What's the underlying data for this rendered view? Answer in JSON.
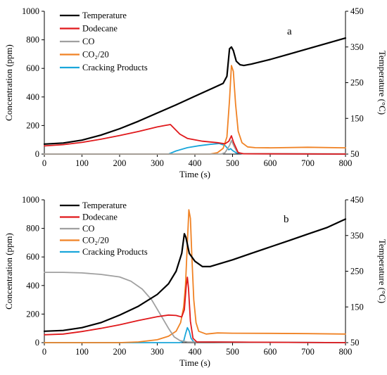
{
  "chart_data": [
    {
      "type": "line",
      "panel_label": "a",
      "xlabel": "Time (s)",
      "ylabel": "Concentration (ppm)",
      "y2label": "Temperature (°C)",
      "xlim": [
        0,
        800
      ],
      "ylim": [
        0,
        1000
      ],
      "y2lim": [
        50,
        450
      ],
      "xticks": [
        0,
        100,
        200,
        300,
        400,
        500,
        600,
        700,
        800
      ],
      "yticks": [
        0,
        200,
        400,
        600,
        800,
        1000
      ],
      "y2ticks": [
        50,
        150,
        250,
        350,
        450
      ],
      "legend_position": "top-left",
      "series": [
        {
          "name": "Temperature",
          "color": "#000000",
          "axis": "right",
          "points": [
            [
              0,
              78
            ],
            [
              50,
              81
            ],
            [
              100,
              89
            ],
            [
              150,
              103
            ],
            [
              200,
              121
            ],
            [
              250,
              142
            ],
            [
              300,
              165
            ],
            [
              350,
              188
            ],
            [
              400,
              212
            ],
            [
              450,
              236
            ],
            [
              475,
              248
            ],
            [
              485,
              268
            ],
            [
              492,
              345
            ],
            [
              497,
              350
            ],
            [
              502,
              340
            ],
            [
              510,
              310
            ],
            [
              520,
              300
            ],
            [
              530,
              298
            ],
            [
              550,
              302
            ],
            [
              600,
              315
            ],
            [
              650,
              330
            ],
            [
              700,
              345
            ],
            [
              750,
              360
            ],
            [
              800,
              375
            ]
          ]
        },
        {
          "name": "Dodecane",
          "color": "#e0181b",
          "axis": "left",
          "points": [
            [
              0,
              57
            ],
            [
              50,
              66
            ],
            [
              100,
              82
            ],
            [
              150,
              104
            ],
            [
              200,
              130
            ],
            [
              250,
              158
            ],
            [
              300,
              190
            ],
            [
              320,
              200
            ],
            [
              335,
              207
            ],
            [
              345,
              180
            ],
            [
              360,
              140
            ],
            [
              380,
              110
            ],
            [
              420,
              90
            ],
            [
              460,
              80
            ],
            [
              480,
              72
            ],
            [
              490,
              90
            ],
            [
              497,
              128
            ],
            [
              503,
              80
            ],
            [
              515,
              10
            ],
            [
              530,
              2
            ],
            [
              800,
              0
            ]
          ]
        },
        {
          "name": "CO",
          "color": "#a0a0a0",
          "axis": "left",
          "points": [
            [
              0,
              0
            ],
            [
              470,
              0
            ],
            [
              480,
              10
            ],
            [
              492,
              60
            ],
            [
              497,
              95
            ],
            [
              503,
              60
            ],
            [
              512,
              15
            ],
            [
              525,
              3
            ],
            [
              800,
              2
            ]
          ]
        },
        {
          "name": "CO₂/20",
          "color": "#f08224",
          "axis": "left",
          "points": [
            [
              0,
              0
            ],
            [
              440,
              0
            ],
            [
              460,
              10
            ],
            [
              475,
              40
            ],
            [
              485,
              120
            ],
            [
              492,
              380
            ],
            [
              497,
              620
            ],
            [
              502,
              580
            ],
            [
              508,
              350
            ],
            [
              515,
              160
            ],
            [
              525,
              80
            ],
            [
              540,
              50
            ],
            [
              560,
              45
            ],
            [
              600,
              44
            ],
            [
              700,
              48
            ],
            [
              800,
              44
            ]
          ]
        },
        {
          "name": "Cracking Products",
          "color": "#1aa6da",
          "axis": "left",
          "points": [
            [
              0,
              0
            ],
            [
              330,
              0
            ],
            [
              350,
              22
            ],
            [
              380,
              45
            ],
            [
              410,
              58
            ],
            [
              440,
              68
            ],
            [
              465,
              74
            ],
            [
              480,
              60
            ],
            [
              490,
              30
            ],
            [
              495,
              38
            ],
            [
              500,
              25
            ],
            [
              510,
              8
            ],
            [
              530,
              2
            ],
            [
              800,
              0
            ]
          ]
        }
      ]
    },
    {
      "type": "line",
      "panel_label": "b",
      "xlabel": "Time (s)",
      "ylabel": "Concentration (ppm)",
      "y2label": "Temperature (°C)",
      "xlim": [
        0,
        800
      ],
      "ylim": [
        0,
        1000
      ],
      "y2lim": [
        50,
        450
      ],
      "xticks": [
        0,
        100,
        200,
        300,
        400,
        500,
        600,
        700,
        800
      ],
      "yticks": [
        0,
        200,
        400,
        600,
        800,
        1000
      ],
      "y2ticks": [
        50,
        150,
        250,
        350,
        450
      ],
      "legend_position": "top-left",
      "series": [
        {
          "name": "Temperature",
          "color": "#000000",
          "axis": "right",
          "points": [
            [
              0,
              82
            ],
            [
              50,
              84
            ],
            [
              100,
              92
            ],
            [
              150,
              106
            ],
            [
              200,
              127
            ],
            [
              250,
              152
            ],
            [
              300,
              185
            ],
            [
              330,
              215
            ],
            [
              350,
              250
            ],
            [
              365,
              300
            ],
            [
              372,
              355
            ],
            [
              376,
              345
            ],
            [
              385,
              300
            ],
            [
              400,
              278
            ],
            [
              420,
              263
            ],
            [
              440,
              263
            ],
            [
              500,
              282
            ],
            [
              550,
              300
            ],
            [
              600,
              318
            ],
            [
              650,
              336
            ],
            [
              700,
              354
            ],
            [
              750,
              372
            ],
            [
              800,
              396
            ]
          ]
        },
        {
          "name": "Dodecane",
          "color": "#e0181b",
          "axis": "left",
          "points": [
            [
              0,
              55
            ],
            [
              50,
              60
            ],
            [
              100,
              78
            ],
            [
              150,
              100
            ],
            [
              200,
              125
            ],
            [
              250,
              155
            ],
            [
              300,
              182
            ],
            [
              330,
              193
            ],
            [
              350,
              190
            ],
            [
              365,
              180
            ],
            [
              372,
              230
            ],
            [
              377,
              400
            ],
            [
              380,
              458
            ],
            [
              383,
              380
            ],
            [
              388,
              150
            ],
            [
              395,
              30
            ],
            [
              405,
              5
            ],
            [
              800,
              0
            ]
          ]
        },
        {
          "name": "CO",
          "color": "#a0a0a0",
          "axis": "left",
          "points": [
            [
              0,
              492
            ],
            [
              50,
              492
            ],
            [
              100,
              488
            ],
            [
              150,
              478
            ],
            [
              200,
              460
            ],
            [
              230,
              430
            ],
            [
              260,
              375
            ],
            [
              285,
              300
            ],
            [
              310,
              190
            ],
            [
              330,
              100
            ],
            [
              345,
              40
            ],
            [
              360,
              15
            ],
            [
              380,
              5
            ],
            [
              800,
              0
            ]
          ]
        },
        {
          "name": "CO₂/20",
          "color": "#f08224",
          "axis": "left",
          "points": [
            [
              0,
              0
            ],
            [
              200,
              0
            ],
            [
              250,
              5
            ],
            [
              300,
              20
            ],
            [
              330,
              45
            ],
            [
              350,
              80
            ],
            [
              362,
              140
            ],
            [
              370,
              250
            ],
            [
              375,
              400
            ],
            [
              380,
              700
            ],
            [
              384,
              930
            ],
            [
              388,
              870
            ],
            [
              392,
              600
            ],
            [
              397,
              300
            ],
            [
              403,
              140
            ],
            [
              410,
              80
            ],
            [
              430,
              60
            ],
            [
              460,
              68
            ],
            [
              500,
              66
            ],
            [
              600,
              65
            ],
            [
              700,
              63
            ],
            [
              800,
              60
            ]
          ]
        },
        {
          "name": "Cracking Products",
          "color": "#1aa6da",
          "axis": "left",
          "points": [
            [
              0,
              0
            ],
            [
              360,
              0
            ],
            [
              370,
              10
            ],
            [
              375,
              60
            ],
            [
              380,
              105
            ],
            [
              385,
              80
            ],
            [
              390,
              30
            ],
            [
              397,
              5
            ],
            [
              800,
              0
            ]
          ]
        }
      ]
    }
  ]
}
